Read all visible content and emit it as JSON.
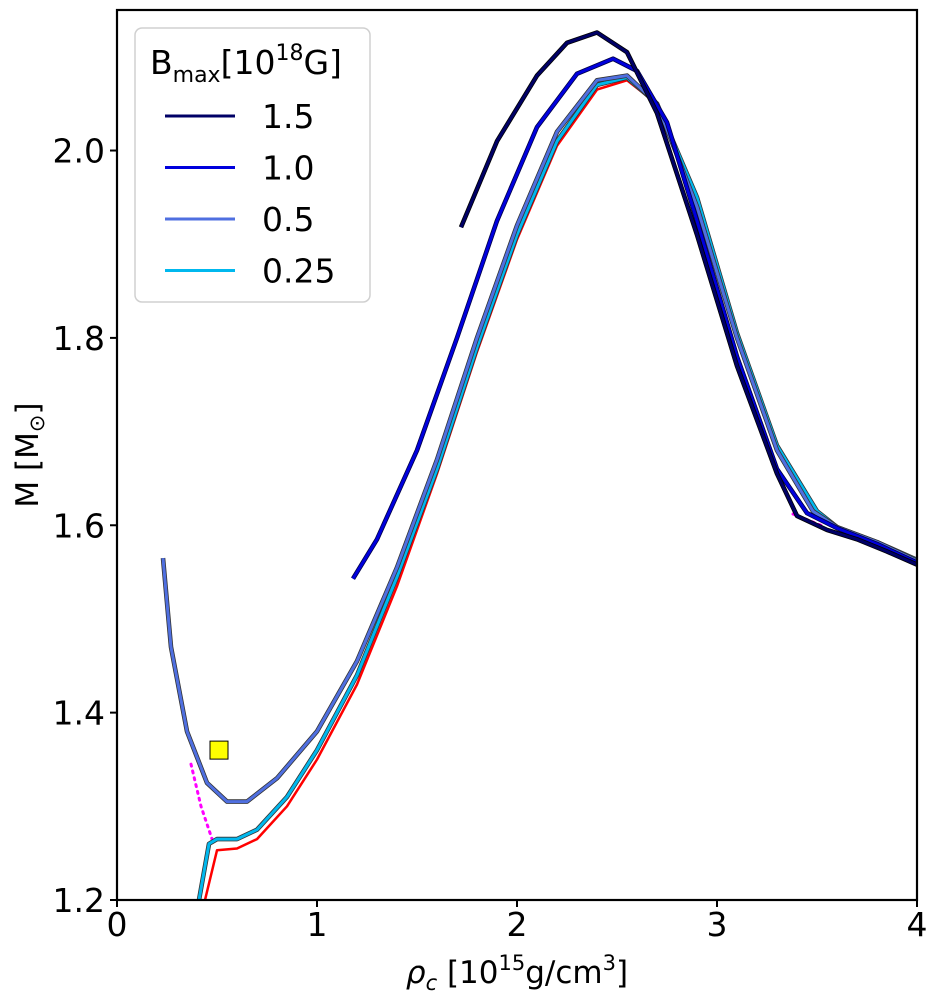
{
  "chart_data": {
    "type": "line",
    "xlabel_symbol": "ρ",
    "xlabel_sub": "c",
    "xlabel_unit_pre": " [10",
    "xlabel_unit_exp1": "15",
    "xlabel_unit_mid": "g/cm",
    "xlabel_unit_exp2": "3",
    "xlabel_unit_post": "]",
    "ylabel_pre": "M [M",
    "ylabel_sub": "⊙",
    "ylabel_post": "]",
    "xlim": [
      0,
      4
    ],
    "ylim": [
      1.2,
      2.15
    ],
    "xticks": [
      0,
      1,
      2,
      3,
      4
    ],
    "xtick_labels": [
      "0",
      "1",
      "2",
      "3",
      "4"
    ],
    "yticks": [
      1.2,
      1.4,
      1.6,
      1.8,
      2.0
    ],
    "ytick_labels": [
      "1.2",
      "1.4",
      "1.6",
      "1.8",
      "2.0"
    ],
    "legend": {
      "title_main": "B",
      "title_sub": "max",
      "title_pre": "[10",
      "title_exp": "18",
      "title_post": "G]",
      "location": "top-left"
    },
    "series": [
      {
        "name": "1.5",
        "color": "#000066",
        "edge": "#000000",
        "width": 3,
        "points": [
          [
            1.72,
            1.918
          ],
          [
            1.9,
            2.01
          ],
          [
            2.1,
            2.08
          ],
          [
            2.25,
            2.115
          ],
          [
            2.4,
            2.126
          ],
          [
            2.55,
            2.105
          ],
          [
            2.7,
            2.04
          ],
          [
            2.9,
            1.91
          ],
          [
            3.1,
            1.77
          ],
          [
            3.3,
            1.655
          ],
          [
            3.4,
            1.61
          ],
          [
            3.55,
            1.595
          ],
          [
            3.7,
            1.585
          ],
          [
            3.85,
            1.572
          ],
          [
            4.0,
            1.558
          ]
        ]
      },
      {
        "name": "1.0",
        "color": "#0000dd",
        "edge": "#000044",
        "width": 3,
        "points": [
          [
            1.18,
            1.543
          ],
          [
            1.3,
            1.585
          ],
          [
            1.5,
            1.68
          ],
          [
            1.7,
            1.8
          ],
          [
            1.9,
            1.925
          ],
          [
            2.1,
            2.025
          ],
          [
            2.3,
            2.082
          ],
          [
            2.48,
            2.098
          ],
          [
            2.6,
            2.085
          ],
          [
            2.75,
            2.03
          ],
          [
            2.9,
            1.925
          ],
          [
            3.1,
            1.78
          ],
          [
            3.3,
            1.66
          ],
          [
            3.45,
            1.613
          ],
          [
            3.6,
            1.597
          ],
          [
            3.8,
            1.58
          ],
          [
            4.0,
            1.56
          ]
        ]
      },
      {
        "name": "0.5",
        "color": "#4f6fe0",
        "edge": "#333333",
        "width": 3,
        "points": [
          [
            0.23,
            1.565
          ],
          [
            0.27,
            1.47
          ],
          [
            0.35,
            1.38
          ],
          [
            0.45,
            1.325
          ],
          [
            0.55,
            1.305
          ],
          [
            0.65,
            1.305
          ],
          [
            0.8,
            1.33
          ],
          [
            1.0,
            1.38
          ],
          [
            1.2,
            1.455
          ],
          [
            1.4,
            1.555
          ],
          [
            1.6,
            1.67
          ],
          [
            1.8,
            1.8
          ],
          [
            2.0,
            1.92
          ],
          [
            2.2,
            2.02
          ],
          [
            2.4,
            2.075
          ],
          [
            2.55,
            2.08
          ],
          [
            2.7,
            2.05
          ],
          [
            2.9,
            1.94
          ],
          [
            3.1,
            1.8
          ],
          [
            3.3,
            1.68
          ],
          [
            3.48,
            1.615
          ],
          [
            3.6,
            1.598
          ],
          [
            3.8,
            1.582
          ],
          [
            4.0,
            1.562
          ]
        ]
      },
      {
        "name": "0.25",
        "color": "#00b8ee",
        "edge": "#333333",
        "width": 3,
        "points": [
          [
            0.41,
            1.2
          ],
          [
            0.46,
            1.26
          ],
          [
            0.5,
            1.265
          ],
          [
            0.6,
            1.265
          ],
          [
            0.7,
            1.275
          ],
          [
            0.85,
            1.31
          ],
          [
            1.0,
            1.36
          ],
          [
            1.2,
            1.44
          ],
          [
            1.4,
            1.545
          ],
          [
            1.6,
            1.66
          ],
          [
            1.8,
            1.79
          ],
          [
            2.0,
            1.91
          ],
          [
            2.2,
            2.01
          ],
          [
            2.4,
            2.07
          ],
          [
            2.55,
            2.078
          ],
          [
            2.7,
            2.05
          ],
          [
            2.9,
            1.95
          ],
          [
            3.1,
            1.805
          ],
          [
            3.3,
            1.685
          ],
          [
            3.5,
            1.615
          ],
          [
            3.6,
            1.598
          ],
          [
            3.8,
            1.582
          ],
          [
            4.0,
            1.563
          ]
        ]
      }
    ],
    "extra_lines": [
      {
        "name": "reference-red",
        "color": "#ff0000",
        "width": 2.5,
        "dash": "",
        "points": [
          [
            0.44,
            1.2
          ],
          [
            0.5,
            1.253
          ],
          [
            0.6,
            1.255
          ],
          [
            0.7,
            1.265
          ],
          [
            0.85,
            1.3
          ],
          [
            1.0,
            1.35
          ],
          [
            1.2,
            1.43
          ],
          [
            1.4,
            1.535
          ],
          [
            1.6,
            1.655
          ],
          [
            1.8,
            1.785
          ],
          [
            2.0,
            1.905
          ],
          [
            2.2,
            2.005
          ],
          [
            2.4,
            2.065
          ],
          [
            2.55,
            2.075
          ],
          [
            2.7,
            2.05
          ],
          [
            2.9,
            1.95
          ],
          [
            3.1,
            1.805
          ],
          [
            3.3,
            1.685
          ],
          [
            3.5,
            1.615
          ],
          [
            3.6,
            1.598
          ],
          [
            3.8,
            1.582
          ],
          [
            4.0,
            1.56
          ]
        ]
      },
      {
        "name": "magenta-dotted",
        "color": "#ff00ff",
        "width": 3,
        "dash": "2,5",
        "points": [
          [
            0.37,
            1.345
          ],
          [
            0.42,
            1.3
          ],
          [
            0.48,
            1.262
          ]
        ]
      },
      {
        "name": "magenta-dotted-right",
        "color": "#ff00ff",
        "width": 3,
        "dash": "2,5",
        "points": [
          [
            3.38,
            1.612
          ],
          [
            3.52,
            1.6
          ]
        ]
      }
    ],
    "marker": {
      "name": "square-marker",
      "x": 0.51,
      "y": 1.36,
      "color": "#ffff00"
    }
  }
}
